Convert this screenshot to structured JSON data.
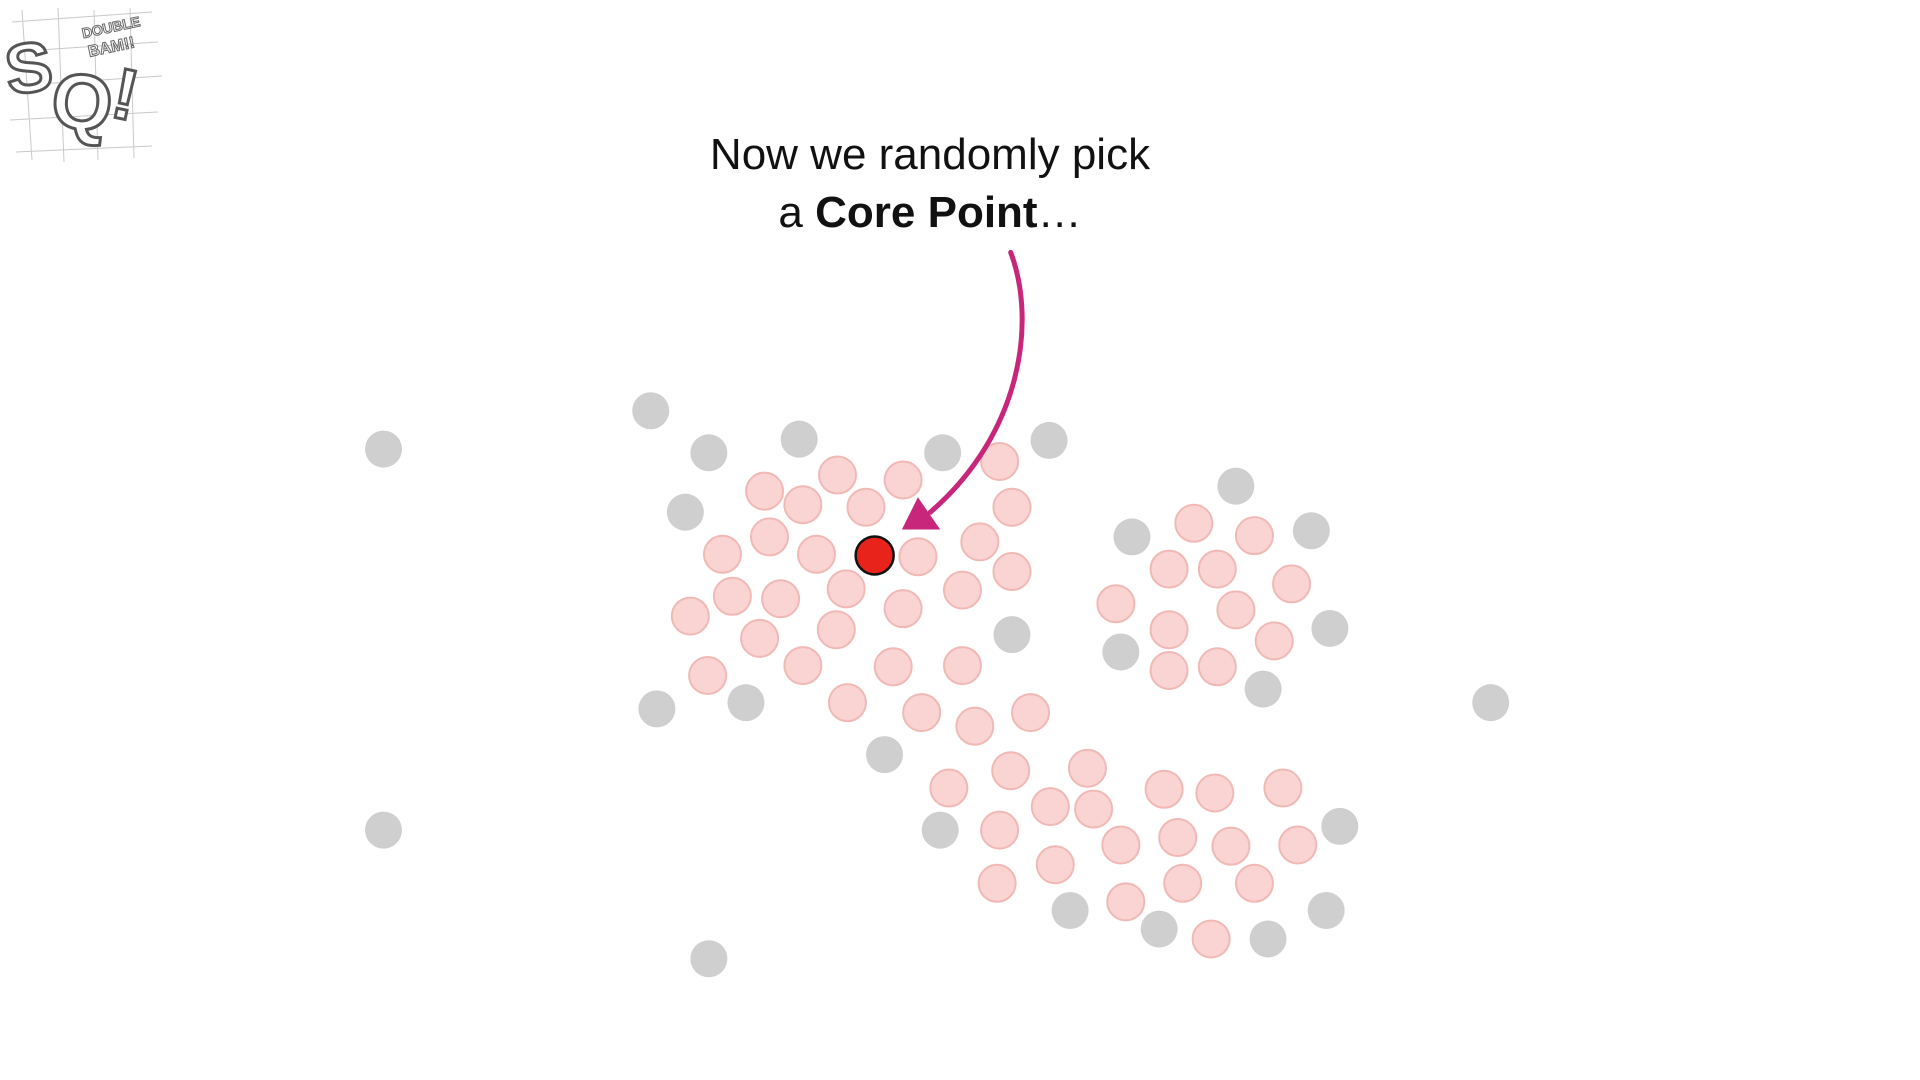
{
  "logo": {
    "icon": "statquest-double-bam-logo",
    "letters": "SQ!",
    "banner": "DOUBLE BAM!!"
  },
  "caption": {
    "line1": "Now we randomly pick",
    "line2_prefix": "a ",
    "line2_bold": "Core Point",
    "line2_suffix": "…"
  },
  "colors": {
    "noise_point": "#cfcfcf",
    "core_point": "#f9d4d2",
    "core_point_outline": "#f0b9b6",
    "selected_point": "#e8231c",
    "arrow": "#c8267a"
  }
}
